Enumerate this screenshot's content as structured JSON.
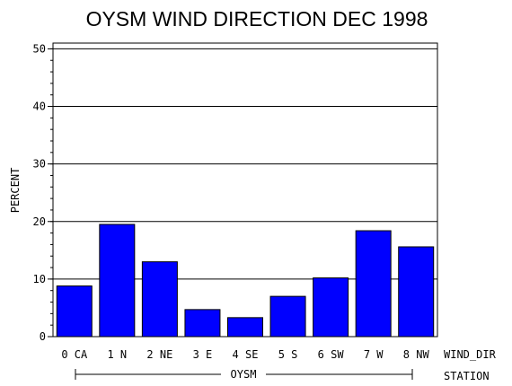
{
  "chart_data": {
    "type": "bar",
    "title": "OYSM WIND DIRECTION DEC 1998",
    "ylabel": "PERCENT",
    "x_axis_label": "WIND_DIR",
    "group_axis_label": "STATION",
    "group_name": "OYSM",
    "categories": [
      "0 CA",
      "1 N",
      "2 NE",
      "3 E",
      "4 SE",
      "5 S",
      "6 SW",
      "7 W",
      "8 NW"
    ],
    "values": [
      8.8,
      19.5,
      13.0,
      4.7,
      3.3,
      7.0,
      10.2,
      18.4,
      15.6
    ],
    "ylim": [
      0,
      51
    ],
    "yticks": [
      0,
      10,
      20,
      30,
      40,
      50
    ],
    "grid": true,
    "bar_color": "#0000ff"
  }
}
